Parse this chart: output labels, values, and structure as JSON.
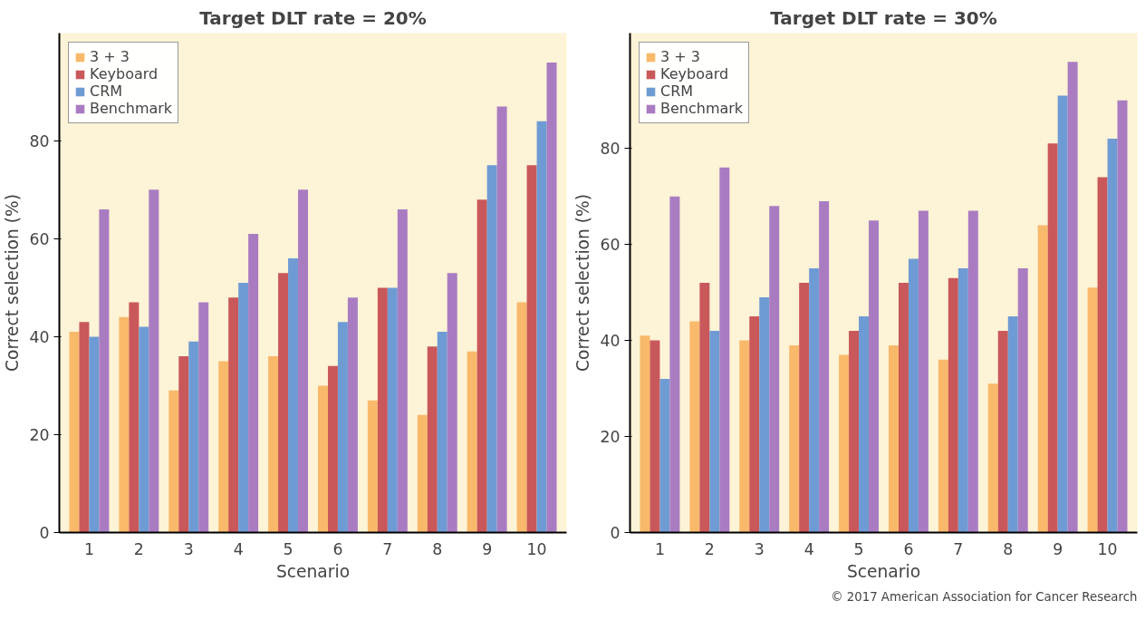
{
  "chart_data": [
    {
      "type": "bar",
      "title": "Target DLT rate = 20%",
      "xlabel": "Scenario",
      "ylabel": "Correct selection (%)",
      "categories": [
        "1",
        "2",
        "3",
        "4",
        "5",
        "6",
        "7",
        "8",
        "9",
        "10"
      ],
      "ylim": [
        0,
        102
      ],
      "yticks": [
        0,
        20,
        40,
        60,
        80
      ],
      "legend": "top left",
      "grid": false,
      "series": [
        {
          "name": "3 + 3",
          "color": "#f9b96a",
          "values": [
            41,
            44,
            29,
            35,
            36,
            30,
            27,
            24,
            37,
            47
          ]
        },
        {
          "name": "Keyboard",
          "color": "#c9585a",
          "values": [
            43,
            47,
            36,
            48,
            53,
            34,
            50,
            38,
            68,
            75
          ]
        },
        {
          "name": "CRM",
          "color": "#6f9bd4",
          "values": [
            40,
            42,
            39,
            51,
            56,
            43,
            50,
            41,
            75,
            84
          ]
        },
        {
          "name": "Benchmark",
          "color": "#a97cc2",
          "values": [
            66,
            70,
            47,
            61,
            70,
            48,
            66,
            53,
            87,
            96
          ]
        }
      ]
    },
    {
      "type": "bar",
      "title": "Target DLT rate = 30%",
      "xlabel": "Scenario",
      "ylabel": "Correct selection (%)",
      "categories": [
        "1",
        "2",
        "3",
        "4",
        "5",
        "6",
        "7",
        "8",
        "9",
        "10"
      ],
      "ylim": [
        0,
        104
      ],
      "yticks": [
        0,
        20,
        40,
        60,
        80
      ],
      "legend": "top left",
      "grid": false,
      "annotations": [
        "© 2017 American Association for Cancer Research"
      ],
      "series": [
        {
          "name": "3 + 3",
          "color": "#f9b96a",
          "values": [
            41,
            44,
            40,
            39,
            37,
            39,
            36,
            31,
            64,
            51
          ]
        },
        {
          "name": "Keyboard",
          "color": "#c9585a",
          "values": [
            40,
            52,
            45,
            52,
            42,
            52,
            53,
            42,
            81,
            74
          ]
        },
        {
          "name": "CRM",
          "color": "#6f9bd4",
          "values": [
            32,
            42,
            49,
            55,
            45,
            57,
            55,
            45,
            91,
            82
          ]
        },
        {
          "name": "Benchmark",
          "color": "#a97cc2",
          "values": [
            70,
            76,
            68,
            69,
            65,
            67,
            67,
            55,
            98,
            90
          ]
        }
      ]
    }
  ]
}
